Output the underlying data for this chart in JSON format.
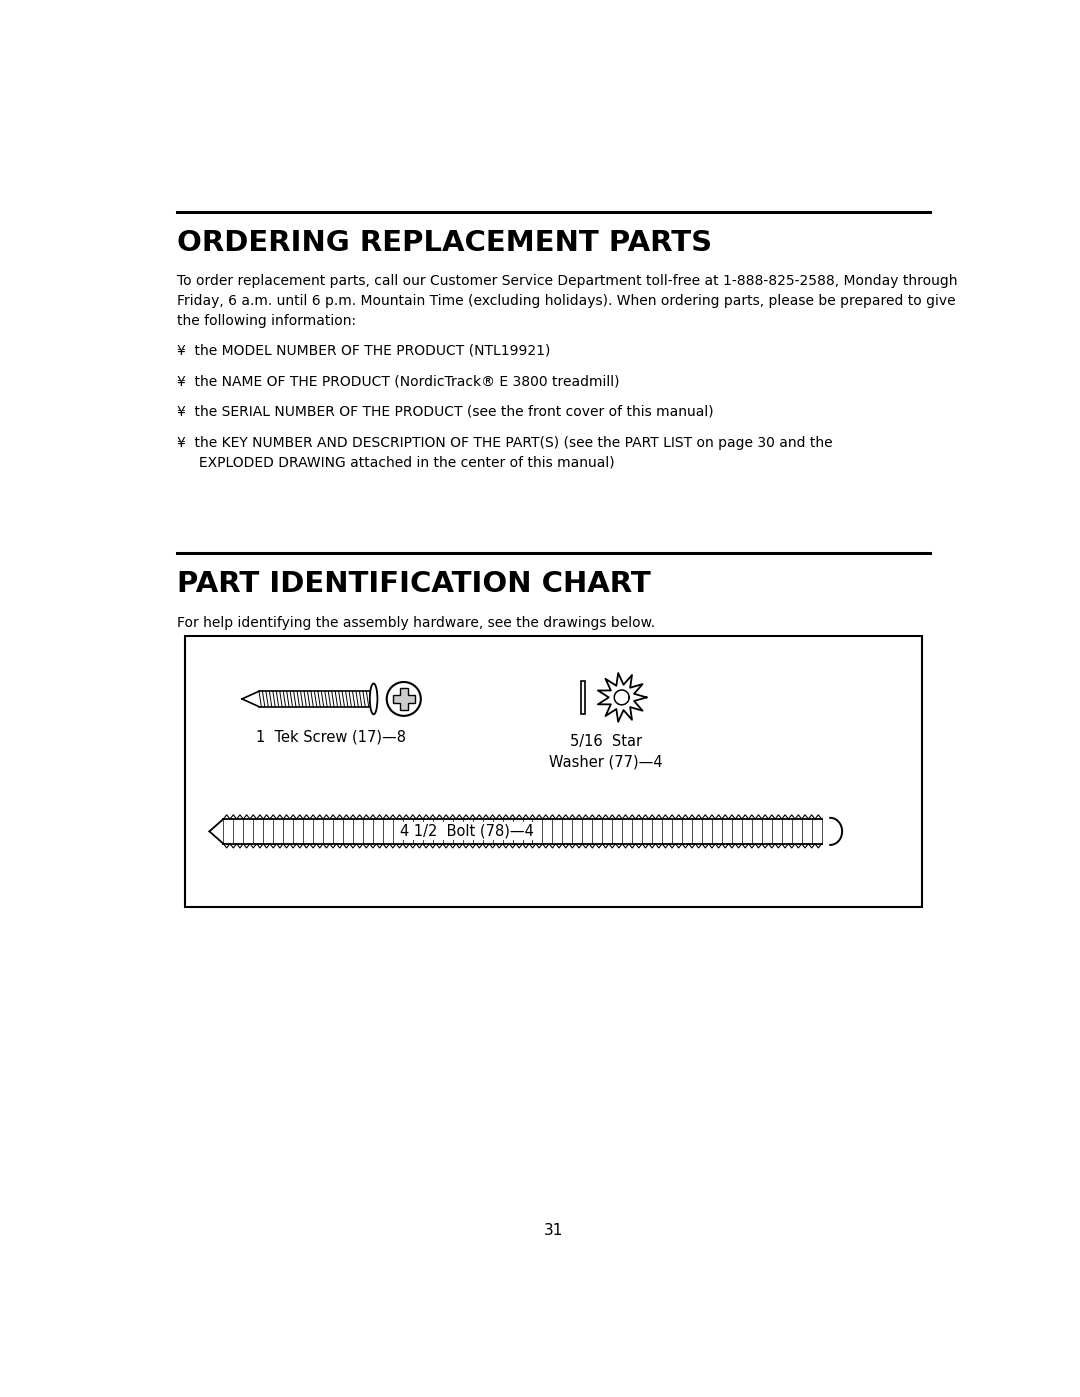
{
  "title1": "ORDERING REPLACEMENT PARTS",
  "body_text": "To order replacement parts, call our Customer Service Department toll-free at 1-888-825-2588, Monday through\nFriday, 6 a.m. until 6 p.m. Mountain Time (excluding holidays). When ordering parts, please be prepared to give\nthe following information:",
  "bullets": [
    "¥  the MODEL NUMBER OF THE PRODUCT (NTL19921)",
    "¥  the NAME OF THE PRODUCT (NordicTrack® E 3800 treadmill)",
    "¥  the SERIAL NUMBER OF THE PRODUCT (see the front cover of this manual)",
    "¥  the KEY NUMBER AND DESCRIPTION OF THE PART(S) (see the PART LIST on page 30 and the\n     EXPLODED DRAWING attached in the center of this manual)"
  ],
  "title2": "PART IDENTIFICATION CHART",
  "subtitle2": "For help identifying the assembly hardware, see the drawings below.",
  "label_tek": "1  Tek Screw (17)—8",
  "label_washer": "5/16  Star\nWasher (77)—4",
  "label_bolt": "4 1/2  Bolt (78)—4",
  "page_number": "31",
  "bg_color": "#ffffff",
  "text_color": "#000000",
  "line_color": "#000000"
}
